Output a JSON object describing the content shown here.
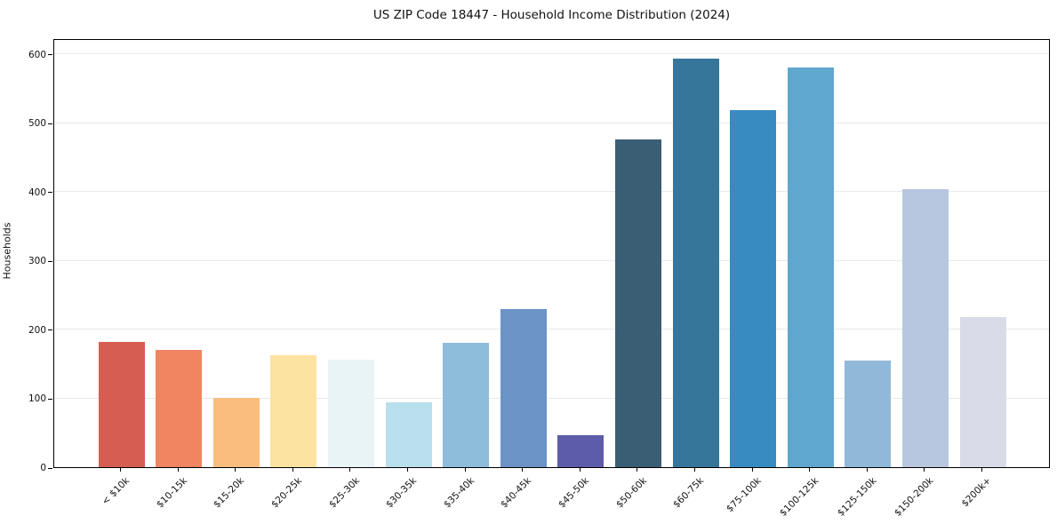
{
  "chart_data": {
    "type": "bar",
    "title": "US ZIP Code 18447 - Household Income Distribution (2024)",
    "xlabel": "",
    "ylabel": "Households",
    "categories": [
      "< $10k",
      "$10-15k",
      "$15-20k",
      "$20-25k",
      "$25-30k",
      "$30-35k",
      "$35-40k",
      "$40-45k",
      "$45-50k",
      "$50-60k",
      "$60-75k",
      "$75-100k",
      "$100-125k",
      "$125-150k",
      "$150-200k",
      "$200k+"
    ],
    "values": [
      182,
      170,
      101,
      162,
      156,
      94,
      180,
      229,
      47,
      476,
      593,
      518,
      581,
      155,
      404,
      218
    ],
    "bar_colors": [
      "#d65d52",
      "#f18562",
      "#fbbd7e",
      "#fde3a2",
      "#e8f4f6",
      "#badfec",
      "#8ebcdb",
      "#6b93c6",
      "#5d5cab",
      "#3a5e73",
      "#36769b",
      "#388bc0",
      "#60a7cd",
      "#90b8d9",
      "#b8c7e0",
      "#dadbe9"
    ],
    "yticks": [
      0,
      100,
      200,
      300,
      400,
      500,
      600
    ],
    "ylim": [
      0,
      623
    ],
    "grid": "horizontal",
    "gridline_color": "#e9e9e9",
    "spine_color": "#000000",
    "text_color": "#111111",
    "background": "#ffffff",
    "legend": "none"
  }
}
